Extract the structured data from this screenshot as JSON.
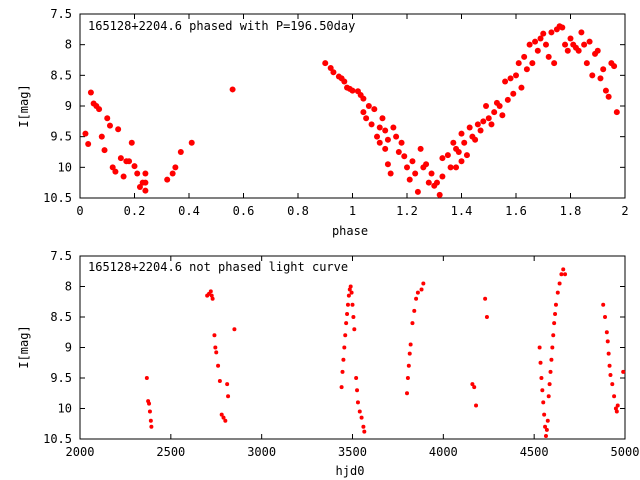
{
  "chart_data": [
    {
      "type": "scatter",
      "title": "165128+2204.6 phased with P=196.50day",
      "xlabel": "phase",
      "ylabel": "I[mag]",
      "xlim": [
        0,
        2
      ],
      "ylim": [
        10.5,
        7.5
      ],
      "y_inverted": true,
      "grid": false,
      "marker_color": "#ff0000",
      "xticks": [
        "0",
        "0.2",
        "0.4",
        "0.6",
        "0.8",
        "1",
        "1.2",
        "1.4",
        "1.6",
        "1.8",
        "2"
      ],
      "yticks": [
        "7.5",
        "8",
        "8.5",
        "9",
        "9.5",
        "10",
        "10.5"
      ],
      "points": [
        [
          0.02,
          9.45
        ],
        [
          0.03,
          9.62
        ],
        [
          0.04,
          8.78
        ],
        [
          0.05,
          8.96
        ],
        [
          0.06,
          9.0
        ],
        [
          0.07,
          9.05
        ],
        [
          0.08,
          9.5
        ],
        [
          0.09,
          9.72
        ],
        [
          0.1,
          9.2
        ],
        [
          0.11,
          9.32
        ],
        [
          0.12,
          10.0
        ],
        [
          0.13,
          10.07
        ],
        [
          0.14,
          9.38
        ],
        [
          0.15,
          9.85
        ],
        [
          0.16,
          10.15
        ],
        [
          0.17,
          9.9
        ],
        [
          0.18,
          9.9
        ],
        [
          0.19,
          9.6
        ],
        [
          0.2,
          9.98
        ],
        [
          0.21,
          10.1
        ],
        [
          0.22,
          10.32
        ],
        [
          0.23,
          10.25
        ],
        [
          0.24,
          10.1
        ],
        [
          0.24,
          10.38
        ],
        [
          0.24,
          10.25
        ],
        [
          0.32,
          10.2
        ],
        [
          0.34,
          10.1
        ],
        [
          0.35,
          10.0
        ],
        [
          0.37,
          9.75
        ],
        [
          0.41,
          9.6
        ],
        [
          0.56,
          8.73
        ],
        [
          0.9,
          8.3
        ],
        [
          0.92,
          8.38
        ],
        [
          0.93,
          8.45
        ],
        [
          0.95,
          8.52
        ],
        [
          0.96,
          8.55
        ],
        [
          0.97,
          8.6
        ],
        [
          0.98,
          8.7
        ],
        [
          0.99,
          8.72
        ],
        [
          1.0,
          8.75
        ],
        [
          1.02,
          8.76
        ],
        [
          1.03,
          8.82
        ],
        [
          1.04,
          8.88
        ],
        [
          1.04,
          9.1
        ],
        [
          1.05,
          9.2
        ],
        [
          1.06,
          9.0
        ],
        [
          1.07,
          9.3
        ],
        [
          1.08,
          9.05
        ],
        [
          1.09,
          9.5
        ],
        [
          1.1,
          9.35
        ],
        [
          1.1,
          9.6
        ],
        [
          1.11,
          9.2
        ],
        [
          1.12,
          9.4
        ],
        [
          1.12,
          9.7
        ],
        [
          1.13,
          9.55
        ],
        [
          1.13,
          9.95
        ],
        [
          1.14,
          10.1
        ],
        [
          1.15,
          9.35
        ],
        [
          1.16,
          9.5
        ],
        [
          1.17,
          9.75
        ],
        [
          1.18,
          9.6
        ],
        [
          1.19,
          9.82
        ],
        [
          1.2,
          10.0
        ],
        [
          1.21,
          10.2
        ],
        [
          1.22,
          9.9
        ],
        [
          1.23,
          10.1
        ],
        [
          1.24,
          10.4
        ],
        [
          1.25,
          9.7
        ],
        [
          1.26,
          10.0
        ],
        [
          1.27,
          9.95
        ],
        [
          1.28,
          10.25
        ],
        [
          1.29,
          10.1
        ],
        [
          1.3,
          10.3
        ],
        [
          1.31,
          10.25
        ],
        [
          1.32,
          10.45
        ],
        [
          1.33,
          9.85
        ],
        [
          1.33,
          10.15
        ],
        [
          1.35,
          9.8
        ],
        [
          1.36,
          10.0
        ],
        [
          1.37,
          9.6
        ],
        [
          1.38,
          9.7
        ],
        [
          1.38,
          10.0
        ],
        [
          1.39,
          9.75
        ],
        [
          1.4,
          9.45
        ],
        [
          1.4,
          9.9
        ],
        [
          1.41,
          9.6
        ],
        [
          1.42,
          9.8
        ],
        [
          1.43,
          9.35
        ],
        [
          1.44,
          9.5
        ],
        [
          1.45,
          9.55
        ],
        [
          1.46,
          9.3
        ],
        [
          1.47,
          9.4
        ],
        [
          1.48,
          9.25
        ],
        [
          1.49,
          9.0
        ],
        [
          1.5,
          9.2
        ],
        [
          1.51,
          9.3
        ],
        [
          1.52,
          9.1
        ],
        [
          1.53,
          8.95
        ],
        [
          1.54,
          9.0
        ],
        [
          1.55,
          9.15
        ],
        [
          1.56,
          8.6
        ],
        [
          1.57,
          8.9
        ],
        [
          1.58,
          8.55
        ],
        [
          1.59,
          8.8
        ],
        [
          1.6,
          8.5
        ],
        [
          1.61,
          8.3
        ],
        [
          1.62,
          8.7
        ],
        [
          1.63,
          8.2
        ],
        [
          1.64,
          8.4
        ],
        [
          1.65,
          8.0
        ],
        [
          1.66,
          8.3
        ],
        [
          1.67,
          7.95
        ],
        [
          1.68,
          8.1
        ],
        [
          1.69,
          7.9
        ],
        [
          1.7,
          7.82
        ],
        [
          1.71,
          8.0
        ],
        [
          1.72,
          8.2
        ],
        [
          1.73,
          7.8
        ],
        [
          1.74,
          8.3
        ],
        [
          1.75,
          7.75
        ],
        [
          1.76,
          7.7
        ],
        [
          1.77,
          7.72
        ],
        [
          1.78,
          8.0
        ],
        [
          1.79,
          8.1
        ],
        [
          1.8,
          7.9
        ],
        [
          1.81,
          8.0
        ],
        [
          1.82,
          8.05
        ],
        [
          1.83,
          8.1
        ],
        [
          1.84,
          7.8
        ],
        [
          1.85,
          8.0
        ],
        [
          1.86,
          8.3
        ],
        [
          1.87,
          7.95
        ],
        [
          1.88,
          8.5
        ],
        [
          1.89,
          8.15
        ],
        [
          1.9,
          8.1
        ],
        [
          1.91,
          8.55
        ],
        [
          1.92,
          8.4
        ],
        [
          1.93,
          8.75
        ],
        [
          1.94,
          8.85
        ],
        [
          1.95,
          8.3
        ],
        [
          1.96,
          8.35
        ],
        [
          1.97,
          9.1
        ]
      ]
    },
    {
      "type": "scatter",
      "title": "165128+2204.6 not phased light curve",
      "xlabel": "hjd0",
      "ylabel": "I[mag]",
      "xlim": [
        2000,
        5000
      ],
      "ylim": [
        10.5,
        7.5
      ],
      "y_inverted": true,
      "grid": false,
      "marker_color": "#ff0000",
      "xticks": [
        "2000",
        "2500",
        "3000",
        "3500",
        "4000",
        "4500",
        "5000"
      ],
      "yticks": [
        "7.5",
        "8",
        "8.5",
        "9",
        "9.5",
        "10",
        "10.5"
      ],
      "points": [
        [
          2368,
          9.5
        ],
        [
          2375,
          9.88
        ],
        [
          2380,
          9.92
        ],
        [
          2385,
          10.05
        ],
        [
          2390,
          10.2
        ],
        [
          2393,
          10.3
        ],
        [
          2700,
          8.15
        ],
        [
          2710,
          8.12
        ],
        [
          2720,
          8.08
        ],
        [
          2725,
          8.15
        ],
        [
          2730,
          8.2
        ],
        [
          2740,
          8.8
        ],
        [
          2745,
          9.0
        ],
        [
          2750,
          9.08
        ],
        [
          2760,
          9.3
        ],
        [
          2770,
          9.55
        ],
        [
          2780,
          10.1
        ],
        [
          2790,
          10.15
        ],
        [
          2800,
          10.2
        ],
        [
          2810,
          9.6
        ],
        [
          2815,
          9.8
        ],
        [
          2850,
          8.7
        ],
        [
          3440,
          9.65
        ],
        [
          3445,
          9.4
        ],
        [
          3450,
          9.2
        ],
        [
          3455,
          9.0
        ],
        [
          3460,
          8.8
        ],
        [
          3465,
          8.6
        ],
        [
          3470,
          8.45
        ],
        [
          3475,
          8.3
        ],
        [
          3480,
          8.15
        ],
        [
          3485,
          8.05
        ],
        [
          3490,
          8.0
        ],
        [
          3495,
          8.1
        ],
        [
          3500,
          8.3
        ],
        [
          3505,
          8.5
        ],
        [
          3510,
          8.7
        ],
        [
          3520,
          9.5
        ],
        [
          3525,
          9.7
        ],
        [
          3530,
          9.9
        ],
        [
          3540,
          10.05
        ],
        [
          3550,
          10.15
        ],
        [
          3560,
          10.3
        ],
        [
          3565,
          10.38
        ],
        [
          3800,
          9.75
        ],
        [
          3805,
          9.5
        ],
        [
          3810,
          9.3
        ],
        [
          3815,
          9.1
        ],
        [
          3820,
          8.95
        ],
        [
          3830,
          8.6
        ],
        [
          3840,
          8.4
        ],
        [
          3850,
          8.2
        ],
        [
          3860,
          8.1
        ],
        [
          3880,
          8.05
        ],
        [
          3890,
          7.95
        ],
        [
          4160,
          9.6
        ],
        [
          4170,
          9.65
        ],
        [
          4180,
          9.95
        ],
        [
          4230,
          8.2
        ],
        [
          4240,
          8.5
        ],
        [
          4530,
          9.0
        ],
        [
          4535,
          9.25
        ],
        [
          4540,
          9.5
        ],
        [
          4545,
          9.7
        ],
        [
          4550,
          9.9
        ],
        [
          4555,
          10.1
        ],
        [
          4560,
          10.3
        ],
        [
          4565,
          10.45
        ],
        [
          4570,
          10.35
        ],
        [
          4575,
          10.2
        ],
        [
          4580,
          9.8
        ],
        [
          4585,
          9.6
        ],
        [
          4590,
          9.4
        ],
        [
          4595,
          9.2
        ],
        [
          4600,
          9.0
        ],
        [
          4605,
          8.8
        ],
        [
          4610,
          8.6
        ],
        [
          4615,
          8.45
        ],
        [
          4620,
          8.3
        ],
        [
          4630,
          8.1
        ],
        [
          4640,
          7.95
        ],
        [
          4650,
          7.8
        ],
        [
          4660,
          7.72
        ],
        [
          4670,
          7.8
        ],
        [
          4880,
          8.3
        ],
        [
          4890,
          8.5
        ],
        [
          4900,
          8.75
        ],
        [
          4905,
          8.9
        ],
        [
          4910,
          9.1
        ],
        [
          4915,
          9.3
        ],
        [
          4920,
          9.45
        ],
        [
          4930,
          9.6
        ],
        [
          4940,
          9.8
        ],
        [
          4950,
          10.0
        ],
        [
          4955,
          10.05
        ],
        [
          4960,
          9.95
        ],
        [
          4990,
          9.4
        ]
      ]
    }
  ]
}
